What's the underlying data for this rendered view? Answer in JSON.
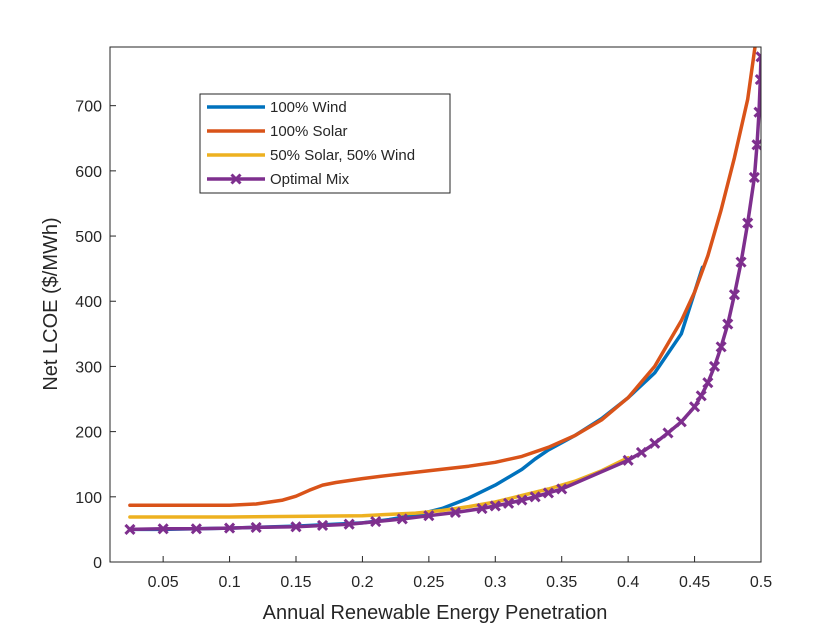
{
  "chart_data": {
    "type": "line",
    "title": "",
    "xlabel": "Annual Renewable Energy Penetration",
    "ylabel": "Net LCOE ($/MWh)",
    "xlim": [
      0.01,
      0.5
    ],
    "ylim": [
      0,
      790
    ],
    "x_ticks": [
      0.05,
      0.1,
      0.15,
      0.2,
      0.25,
      0.3,
      0.35,
      0.4,
      0.45,
      0.5
    ],
    "x_tick_labels": [
      "0.05",
      "0.1",
      "0.15",
      "0.2",
      "0.25",
      "0.3",
      "0.35",
      "0.4",
      "0.45",
      "0.5"
    ],
    "y_ticks": [
      0,
      100,
      200,
      300,
      400,
      500,
      600,
      700
    ],
    "y_tick_labels": [
      "0",
      "100",
      "200",
      "300",
      "400",
      "500",
      "600",
      "700"
    ],
    "grid": false,
    "legend_position": "top-left",
    "series": [
      {
        "name": "100% Wind",
        "color": "#0072BD",
        "marker": "none",
        "x": [
          0.025,
          0.05,
          0.1,
          0.15,
          0.2,
          0.22,
          0.24,
          0.26,
          0.28,
          0.3,
          0.32,
          0.33,
          0.34,
          0.36,
          0.38,
          0.4,
          0.42,
          0.44,
          0.456
        ],
        "y": [
          50,
          50,
          52,
          55,
          60,
          65,
          72,
          82,
          98,
          118,
          142,
          158,
          172,
          194,
          220,
          252,
          290,
          350,
          452
        ]
      },
      {
        "name": " 100% Solar",
        "color": "#D95319",
        "marker": "none",
        "x": [
          0.025,
          0.05,
          0.1,
          0.12,
          0.14,
          0.15,
          0.16,
          0.17,
          0.18,
          0.2,
          0.22,
          0.25,
          0.28,
          0.3,
          0.32,
          0.34,
          0.36,
          0.38,
          0.4,
          0.42,
          0.44,
          0.45,
          0.46,
          0.47,
          0.48,
          0.49,
          0.4955
        ],
        "y": [
          87,
          87,
          87,
          89,
          95,
          101,
          110,
          118,
          122,
          128,
          133,
          140,
          147,
          153,
          162,
          176,
          194,
          218,
          252,
          300,
          370,
          414,
          470,
          540,
          620,
          710,
          790
        ]
      },
      {
        "name": "50% Solar, 50% Wind",
        "color": "#EDB120",
        "marker": "none",
        "x": [
          0.025,
          0.05,
          0.1,
          0.15,
          0.2,
          0.22,
          0.24,
          0.26,
          0.28,
          0.3,
          0.32,
          0.34,
          0.36,
          0.38,
          0.4
        ],
        "y": [
          69,
          69,
          69,
          70,
          71,
          73,
          75,
          79,
          85,
          92,
          102,
          112,
          124,
          140,
          160
        ]
      },
      {
        "name": "Optimal Mix",
        "color": "#7E2F8E",
        "marker": "x",
        "x": [
          0.025,
          0.05,
          0.075,
          0.1,
          0.12,
          0.15,
          0.17,
          0.19,
          0.21,
          0.23,
          0.25,
          0.27,
          0.29,
          0.3,
          0.31,
          0.32,
          0.33,
          0.34,
          0.35,
          0.4,
          0.41,
          0.42,
          0.43,
          0.44,
          0.45,
          0.455,
          0.46,
          0.465,
          0.47,
          0.475,
          0.48,
          0.485,
          0.49,
          0.495,
          0.497,
          0.4985,
          0.4995,
          0.5
        ],
        "y": [
          50,
          51,
          51,
          52,
          53,
          54,
          56,
          58,
          62,
          66,
          71,
          76,
          82,
          86,
          90,
          95,
          100,
          106,
          112,
          156,
          168,
          182,
          198,
          215,
          238,
          255,
          275,
          300,
          330,
          365,
          410,
          460,
          520,
          590,
          640,
          690,
          740,
          775
        ]
      }
    ]
  }
}
